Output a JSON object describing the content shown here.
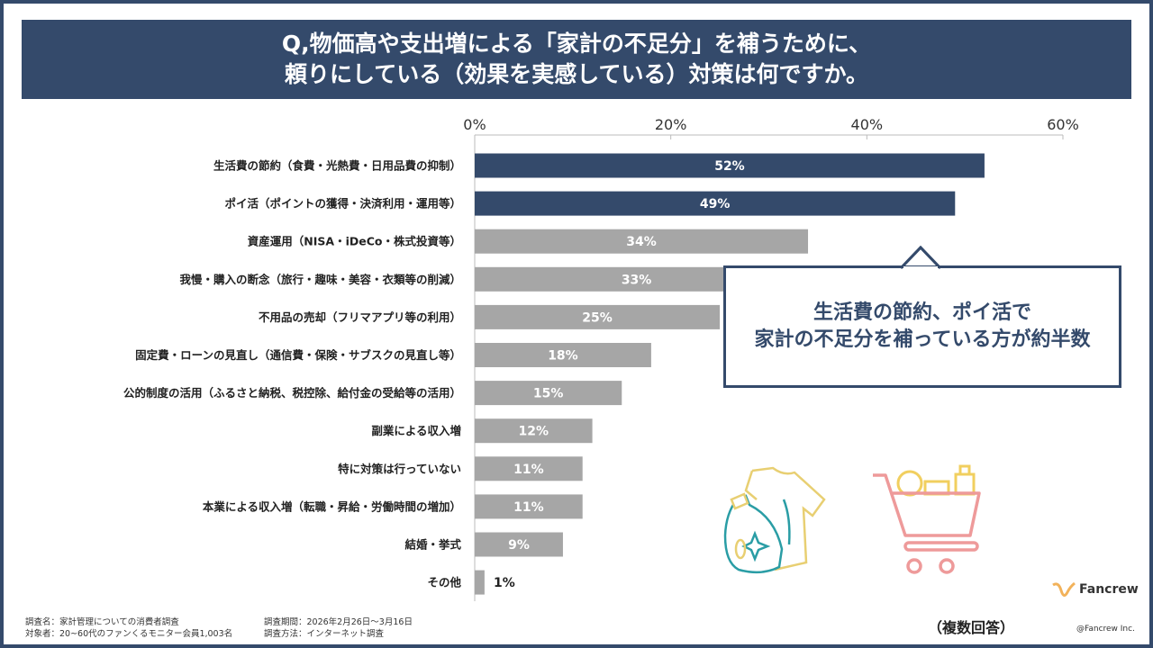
{
  "header": {
    "title_line1": "Q,物価高や支出増による「家計の不足分」を補うために、",
    "title_line2": "頼りにしている（効果を実感している）対策は何ですか。"
  },
  "chart_data": {
    "type": "bar",
    "orientation": "horizontal",
    "categories": [
      "生活費の節約（食費・光熱費・日用品費の抑制）",
      "ポイ活（ポイントの獲得・決済利用・運用等）",
      "資産運用（NISA・iDeCo・株式投資等）",
      "我慢・購入の断念（旅行・趣味・美容・衣類等の削減）",
      "不用品の売却（フリマアプリ等の利用）",
      "固定費・ローンの見直し（通信費・保険・サブスクの見直し等）",
      "公的制度の活用（ふるさと納税、税控除、給付金の受給等の活用）",
      "副業による収入増",
      "特に対策は行っていない",
      "本業による収入増（転職・昇給・労働時間の増加）",
      "結婚・挙式",
      "その他"
    ],
    "values": [
      52,
      49,
      34,
      33,
      25,
      18,
      15,
      12,
      11,
      11,
      9,
      1
    ],
    "data_labels": [
      "52%",
      "49%",
      "34%",
      "33%",
      "25%",
      "18%",
      "15%",
      "12%",
      "11%",
      "11%",
      "9%",
      "1%"
    ],
    "highlight_count": 2,
    "xlim": [
      0,
      60
    ],
    "x_ticks": [
      "0%",
      "20%",
      "40%",
      "60%"
    ],
    "x_tick_values": [
      0,
      20,
      40,
      60
    ],
    "axis_position": "top",
    "grid": false,
    "colors": {
      "highlight": "#344a6b",
      "default": "#a6a6a6"
    }
  },
  "callout": {
    "line1": "生活費の節約、ポイ活で",
    "line2": "家計の不足分を補っている方が約半数"
  },
  "footer": {
    "survey_name": "調査名：家計管理についての消費者調査",
    "target": "対象者：20~60代のファンくるモニター会員1,003名",
    "period": "調査期間：2026年2月26日～3月16日",
    "method": "調査方法：インターネット調査",
    "multiple_answers": "（複数回答）",
    "copyright": "@Fancrew Inc.",
    "logo_text": "Fancrew"
  }
}
